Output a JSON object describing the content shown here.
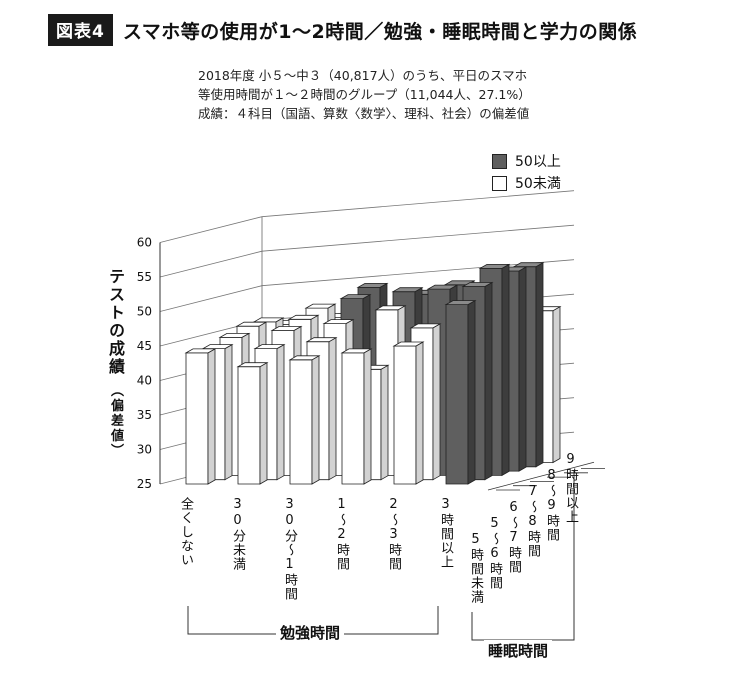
{
  "figure": {
    "tag": "図表4",
    "title": "スマホ等の使用が1～2時間／勉強・睡眠時間と学力の関係"
  },
  "notes": [
    "2018年度 小５～中３（40,817人）のうち、平日のスマホ",
    "等使用時間が１～２時間のグループ（11,044人、27.1%）",
    "成績：４科目（国語、算数〈数学〉、理科、社会）の偏差値"
  ],
  "legend": [
    {
      "label": "50以上",
      "color": "#5f5f5f"
    },
    {
      "label": "50未満",
      "color": "#ffffff"
    }
  ],
  "chart_data": {
    "type": "bar",
    "subtype": "3d-bar",
    "ylabel": "テストの成績",
    "ylabel_sub": "（偏差値）",
    "ylim": [
      25,
      60
    ],
    "yticks": [
      25,
      30,
      35,
      40,
      45,
      50,
      55,
      60
    ],
    "x_axis_title": "勉強時間",
    "z_axis_title": "睡眠時間",
    "x_categories": [
      "全くしない",
      "30分未満",
      "30分～1時間",
      "1～2時間",
      "2～3時間",
      "3時間以上"
    ],
    "z_categories": [
      "5時間未満",
      "5～6時間",
      "6～7時間",
      "7～8時間",
      "8～9時間",
      "9時間以上"
    ],
    "threshold": 50,
    "series": [
      {
        "name": "5時間未満",
        "values": [
          44,
          42,
          43,
          44,
          45,
          51
        ]
      },
      {
        "name": "5～6時間",
        "values": [
          44,
          44,
          45,
          41,
          47,
          53
        ]
      },
      {
        "name": "6～7時間",
        "values": [
          45,
          46,
          47,
          49,
          52,
          55
        ]
      },
      {
        "name": "7～8時間",
        "values": [
          46,
          47,
          50,
          51,
          52,
          54
        ]
      },
      {
        "name": "8～9時間",
        "values": [
          46,
          48,
          51,
          50,
          51,
          54
        ]
      },
      {
        "name": "9時間以上",
        "values": [
          45,
          46,
          47,
          48,
          47,
          47
        ]
      }
    ]
  }
}
